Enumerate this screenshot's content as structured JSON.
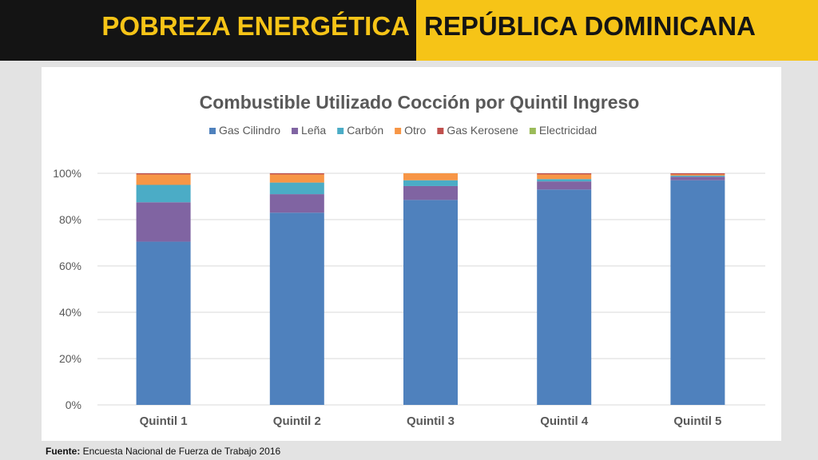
{
  "header": {
    "title_left": "POBREZA ENERGÉTICA",
    "title_right": "REPÚBLICA DOMINICANA"
  },
  "colors": {
    "banner_dark": "#141414",
    "banner_yellow": "#f6c417"
  },
  "chart_data": {
    "type": "bar",
    "stacked": true,
    "title": "Combustible Utilizado Cocción por Quintil Ingreso",
    "categories": [
      "Quintil 1",
      "Quintil 2",
      "Quintil 3",
      "Quintil 4",
      "Quintil 5"
    ],
    "series": [
      {
        "name": "Gas Cilindro",
        "color": "#4f81bd",
        "values": [
          70.5,
          83,
          88.5,
          93,
          97
        ]
      },
      {
        "name": "Leña",
        "color": "#8064a2",
        "values": [
          17,
          8,
          6,
          3.5,
          1.5
        ]
      },
      {
        "name": "Carbón",
        "color": "#4bacc6",
        "values": [
          7.5,
          5,
          2.5,
          1,
          0.5
        ]
      },
      {
        "name": "Otro",
        "color": "#f79646",
        "values": [
          4.5,
          3.5,
          3,
          2,
          0.5
        ]
      },
      {
        "name": "Gas Kerosene",
        "color": "#c0504d",
        "values": [
          0.5,
          0.5,
          0,
          0.5,
          0.5
        ]
      },
      {
        "name": "Electricidad",
        "color": "#9bbb59",
        "values": [
          0,
          0,
          0,
          0,
          0
        ]
      }
    ],
    "ylim": [
      0,
      100
    ],
    "yticks": [
      0,
      20,
      40,
      60,
      80,
      100
    ],
    "ytick_labels": [
      "0%",
      "20%",
      "40%",
      "60%",
      "80%",
      "100%"
    ],
    "grid": true,
    "legend_position": "top"
  },
  "footer": {
    "label": "Fuente:",
    "text": " Encuesta Nacional de Fuerza de Trabajo 2016"
  }
}
